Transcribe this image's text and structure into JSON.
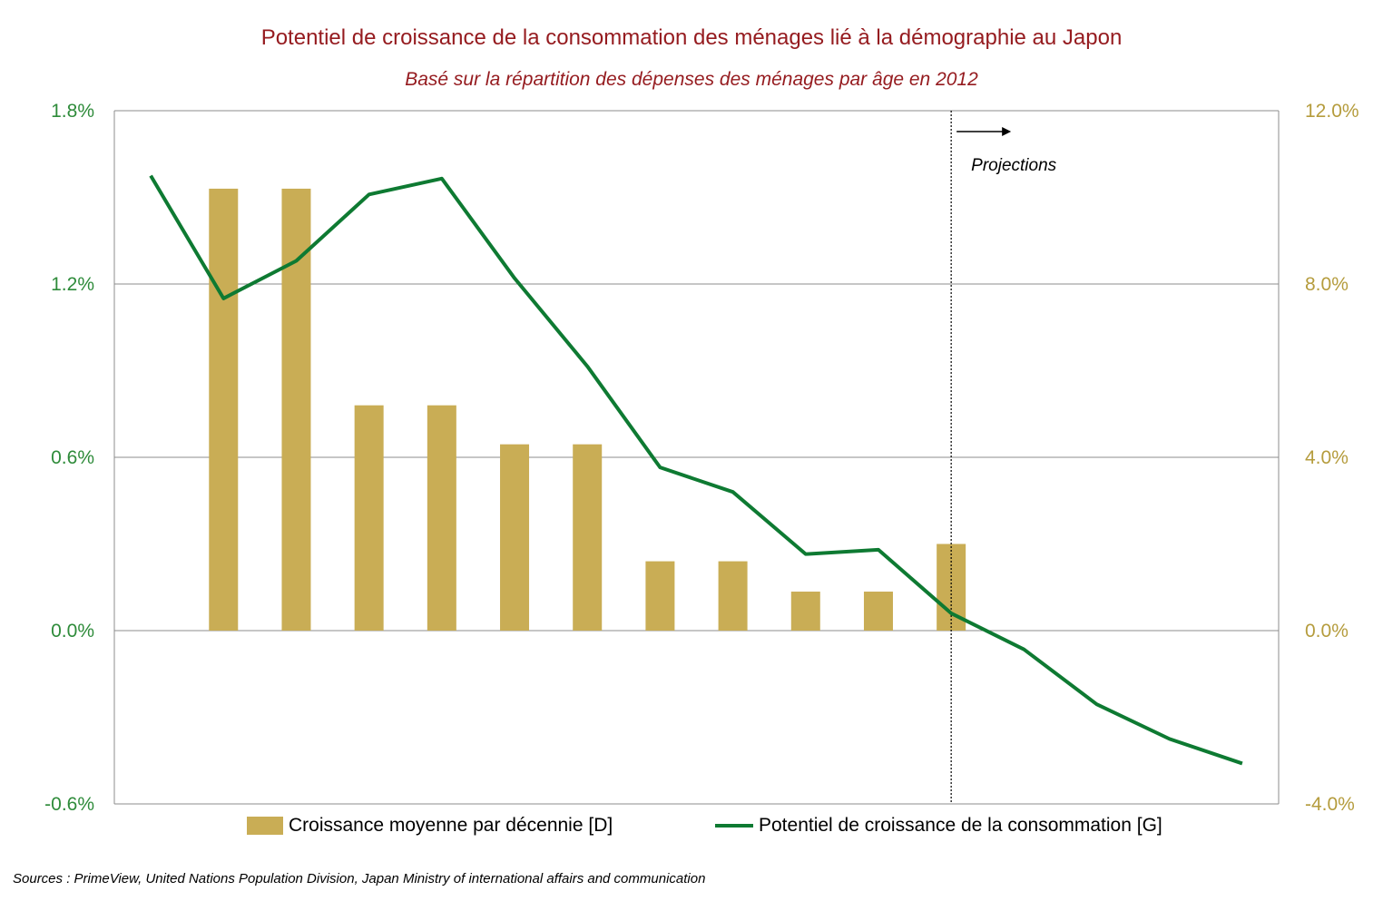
{
  "chart_data": {
    "type": "bar+line",
    "title": "Potentiel de croissance de la consommation des ménages lié à la démographie au Japon",
    "subtitle": "Basé sur la répartition des dépenses des ménages par âge en 2012",
    "left_axis": {
      "ticks": [
        "1.8%",
        "1.2%",
        "0.6%",
        "0.0%",
        "-0.6%"
      ],
      "range": [
        -0.6,
        1.8
      ]
    },
    "right_axis": {
      "ticks": [
        "12.0%",
        "8.0%",
        "4.0%",
        "0.0%",
        "-4.0%"
      ],
      "range": [
        -4.0,
        12.0
      ]
    },
    "grid": true,
    "projection_label": "Projections",
    "projection_start_index": 11.5,
    "bars": {
      "name": "Croissance moyenne par décennie [D]",
      "axis": "right",
      "values": [
        null,
        10.2,
        10.2,
        5.2,
        5.2,
        4.3,
        4.3,
        1.6,
        1.6,
        0.9,
        0.9,
        2.0,
        null,
        null,
        null,
        null
      ]
    },
    "line": {
      "name": "Potentiel de croissance de la consommation [G]",
      "axis": "left",
      "values": [
        1.575,
        1.15,
        1.28,
        1.51,
        1.565,
        1.22,
        0.915,
        0.565,
        0.48,
        0.265,
        0.28,
        0.06,
        -0.065,
        -0.255,
        -0.375,
        -0.46
      ]
    },
    "colors": {
      "bar": "#c9ad55",
      "line": "#0e7a32",
      "title": "#951b1f",
      "left_tick": "#2e8b3a",
      "right_tick": "#b59c3d"
    }
  },
  "source": "Sources : PrimeView, United Nations Population Division, Japan Ministry of international affairs and communication"
}
